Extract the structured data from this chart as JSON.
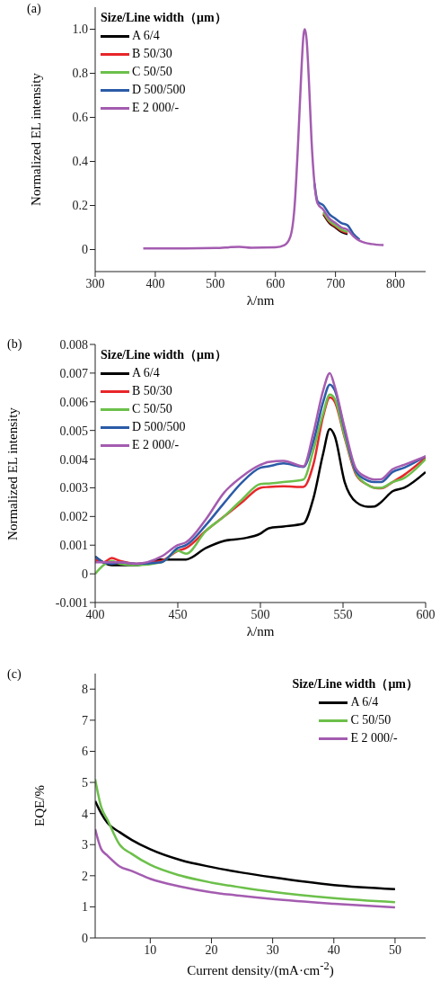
{
  "chart_data": [
    {
      "type": "line",
      "title": "(a)",
      "xlabel": "λ/nm",
      "ylabel": "Normalized EL intensity",
      "legend_title": "Size/Line width（μm）",
      "legend": "top left",
      "grid": false,
      "marker": "none",
      "line_style": "solid",
      "xlim": [
        300,
        850
      ],
      "xticks": [
        300,
        400,
        500,
        600,
        700,
        800
      ],
      "ylim": [
        -0.1,
        1.1
      ],
      "yticks": [
        0,
        0.2,
        0.4,
        0.6,
        0.8,
        {
          "value": 1,
          "label": "1.0"
        }
      ],
      "x": [
        380,
        450,
        500,
        540,
        560,
        600,
        615,
        625,
        632,
        638,
        643,
        647,
        649,
        652,
        656,
        660,
        665,
        670,
        680,
        690,
        700,
        710,
        720,
        730,
        740,
        750,
        760,
        780
      ],
      "series": [
        {
          "name": "A 6/4",
          "color": "#000000",
          "values": [
            null,
            null,
            null,
            null,
            null,
            null,
            null,
            null,
            null,
            null,
            null,
            null,
            null,
            null,
            null,
            null,
            null,
            null,
            0.16,
            0.12,
            0.1,
            0.08,
            0.07,
            null,
            null,
            null,
            null,
            null
          ]
        },
        {
          "name": "B 50/30",
          "color": "#e8262a",
          "values": [
            null,
            null,
            null,
            null,
            null,
            null,
            null,
            null,
            null,
            null,
            null,
            null,
            null,
            null,
            null,
            null,
            null,
            null,
            0.165,
            0.125,
            0.105,
            0.085,
            0.075,
            null,
            null,
            null,
            null,
            null
          ]
        },
        {
          "name": "C 50/50",
          "color": "#6cc04a",
          "values": [
            null,
            null,
            null,
            null,
            null,
            null,
            null,
            null,
            null,
            null,
            null,
            null,
            null,
            null,
            null,
            null,
            null,
            null,
            0.17,
            0.13,
            0.11,
            0.09,
            0.08,
            null,
            null,
            null,
            null,
            null
          ]
        },
        {
          "name": "D 500/500",
          "color": "#2b5ba8",
          "values": [
            null,
            null,
            null,
            null,
            null,
            null,
            null,
            null,
            null,
            null,
            null,
            null,
            null,
            null,
            null,
            null,
            0.3,
            0.22,
            0.2,
            0.16,
            0.14,
            0.12,
            0.11,
            0.07,
            0.045,
            null,
            null,
            null
          ]
        },
        {
          "name": "E 2 000/-",
          "color": "#a45cb0",
          "values": [
            0.005,
            0.005,
            0.007,
            0.012,
            0.008,
            0.01,
            0.02,
            0.06,
            0.2,
            0.5,
            0.8,
            0.98,
            1.0,
            0.95,
            0.75,
            0.5,
            0.3,
            0.21,
            0.18,
            0.14,
            0.12,
            0.1,
            0.09,
            0.06,
            0.04,
            0.03,
            0.025,
            0.02
          ]
        }
      ]
    },
    {
      "type": "line",
      "title": "(b)",
      "xlabel": "λ/nm",
      "ylabel": "Normalized EL intensity",
      "legend_title": "Size/Line width（μm）",
      "legend": "top left",
      "grid": false,
      "marker": "none",
      "line_style": "solid",
      "xlim": [
        400,
        600
      ],
      "xticks": [
        400,
        450,
        500,
        550,
        600
      ],
      "ylim": [
        -0.001,
        0.008
      ],
      "yticks": [
        -0.001,
        0,
        0.001,
        0.002,
        0.003,
        0.004,
        0.005,
        0.006,
        0.007,
        0.008
      ],
      "x": [
        400,
        405,
        410,
        415,
        425,
        440,
        450,
        455,
        467,
        478,
        489,
        500,
        505,
        514,
        526,
        532,
        538,
        542,
        545,
        551,
        558,
        565,
        569,
        573,
        580,
        587,
        600
      ],
      "series": [
        {
          "name": "A 6/4",
          "color": "#000000",
          "values": [
            0.0006,
            0.0004,
            0.0003,
            0.0003,
            0.0003,
            0.0005,
            0.0005,
            0.0005,
            0.0009,
            0.00115,
            0.00123,
            0.0014,
            0.00159,
            0.00165,
            0.00175,
            0.00262,
            0.0042,
            0.00505,
            0.0048,
            0.0032,
            0.0025,
            0.00234,
            0.00235,
            0.0025,
            0.00288,
            0.003,
            0.00355
          ]
        },
        {
          "name": "B 50/30",
          "color": "#e8262a",
          "values": [
            0.0005,
            0.0004,
            0.00055,
            0.00045,
            0.00035,
            0.00045,
            0.0008,
            0.0009,
            0.0015,
            0.002,
            0.0025,
            0.003,
            0.00303,
            0.00305,
            0.00303,
            0.0038,
            0.0055,
            0.00615,
            0.006,
            0.00475,
            0.00345,
            0.0031,
            0.003,
            0.00298,
            0.0032,
            0.00345,
            0.00405
          ]
        },
        {
          "name": "C 50/50",
          "color": "#6cc04a",
          "values": [
            0,
            0.0003,
            0.00045,
            0.00035,
            0.0003,
            0.0004,
            0.0008,
            0.0007,
            0.0015,
            0.002,
            0.0026,
            0.00313,
            0.00315,
            0.0032,
            0.00329,
            0.0043,
            0.0056,
            0.00625,
            0.0061,
            0.0048,
            0.0035,
            0.0031,
            0.003,
            0.003,
            0.0032,
            0.00334,
            0.004
          ]
        },
        {
          "name": "D 500/500",
          "color": "#2b5ba8",
          "values": [
            0.0006,
            0.0004,
            0.00035,
            0.0004,
            0.00035,
            0.0004,
            0.0009,
            0.001,
            0.0017,
            0.00247,
            0.0032,
            0.0037,
            0.00375,
            0.00385,
            0.00373,
            0.0046,
            0.006,
            0.0066,
            0.0064,
            0.005,
            0.00355,
            0.00325,
            0.0032,
            0.0032,
            0.00355,
            0.0037,
            0.0041
          ]
        },
        {
          "name": "E 2 000/-",
          "color": "#a45cb0",
          "values": [
            0.0004,
            0.0004,
            0.0004,
            0.0004,
            0.00035,
            0.0006,
            0.001,
            0.0011,
            0.0019,
            0.00283,
            0.0034,
            0.0038,
            0.0039,
            0.00394,
            0.00375,
            0.0049,
            0.0064,
            0.007,
            0.00653,
            0.00509,
            0.00365,
            0.00335,
            0.00329,
            0.0033,
            0.00365,
            0.0038,
            0.0041
          ]
        }
      ]
    },
    {
      "type": "line",
      "title": "(c)",
      "xlabel": "Current density/(mA·cm$^{-2}$)",
      "ylabel": "EQE/%",
      "legend_title": "Size/Line width（μm）",
      "legend": "top right",
      "grid": false,
      "marker": "none",
      "line_style": "solid",
      "xlim": [
        1,
        55
      ],
      "xticks": [
        10,
        20,
        30,
        40,
        50
      ],
      "ylim": [
        0,
        8.5
      ],
      "yticks": [
        0,
        1,
        2,
        3,
        4,
        5,
        6,
        7,
        8
      ],
      "x": [
        1,
        2,
        3,
        5,
        7,
        10,
        15,
        20,
        25,
        30,
        40,
        50
      ],
      "series": [
        {
          "name": "A 6/4",
          "color": "#000000",
          "values": [
            4.4,
            4.0,
            3.7,
            3.4,
            3.15,
            2.85,
            2.5,
            2.28,
            2.1,
            1.95,
            1.7,
            1.57
          ]
        },
        {
          "name": "C 50/50",
          "color": "#6cc04a",
          "values": [
            5.1,
            4.2,
            3.8,
            3.0,
            2.7,
            2.35,
            2.0,
            1.78,
            1.62,
            1.48,
            1.28,
            1.15
          ]
        },
        {
          "name": "E 2 000/-",
          "color": "#a45cb0",
          "values": [
            3.5,
            2.85,
            2.65,
            2.3,
            2.15,
            1.9,
            1.65,
            1.47,
            1.35,
            1.25,
            1.1,
            0.98
          ]
        }
      ]
    }
  ]
}
